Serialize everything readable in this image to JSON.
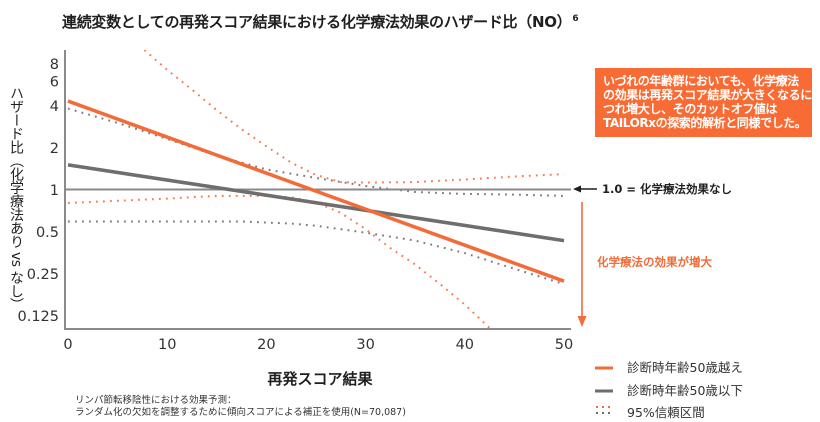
{
  "title": "連続変数としての再発スコア結果における化学療法効果のハザード比（NO）",
  "title_superscript": "6",
  "colors": {
    "older_group": "#F26B38",
    "younger_group": "#6E6E6E",
    "reference_line": "#8A8A8A",
    "callout_background": "#F86B35"
  },
  "callout": {
    "lines": [
      "いづれの年齢群においても、化学療法",
      "の効果は再発スコア結果が大きくなるに",
      "つれ増大し、そのカットオフ値は",
      "TAILORxの探索的解析と同様でした。"
    ]
  },
  "annotations": {
    "reference_label": "1.0 = 化学療法効果なし",
    "increase_label": "化学療法の効果が増大"
  },
  "footnote": {
    "line1": "リンパ節転移陰性における効果予測：",
    "line2": "ランダム化の欠如を調整するために傾向スコアによる補正を使用(N=70,087)"
  },
  "legend": {
    "position": "bottom-right",
    "items": [
      {
        "label": "診断時年齢50歳越え",
        "style": "solid",
        "color": "#F26B38"
      },
      {
        "label": "診断時年齢50歳以下",
        "style": "solid",
        "color": "#6E6E6E"
      },
      {
        "label": "95%信頼区間",
        "style": "dotted",
        "color": "#F26B38"
      }
    ]
  },
  "chart_data": {
    "type": "line",
    "title": "連続変数としての再発スコア結果における化学療法効果のハザード比（NO）",
    "xlabel": "再発スコア結果",
    "ylabel": "ハザード比（化学療法あり vs なし）",
    "xlim": [
      0,
      50
    ],
    "ylim": [
      0.1,
      10
    ],
    "yscale": "log",
    "grid": false,
    "xticks": [
      0,
      10,
      20,
      30,
      40,
      50
    ],
    "xtick_labels": [
      "0",
      "10",
      "20",
      "30",
      "40",
      "50"
    ],
    "yticks": [
      8,
      6,
      4,
      2,
      1,
      0.5,
      0.25,
      0.125
    ],
    "ytick_labels": [
      "8",
      "6",
      "4",
      "2",
      "1",
      "0.5",
      "0.25",
      "0.125"
    ],
    "reference_line": {
      "y": 1,
      "label": "1.0 = 化学療法効果なし"
    },
    "legend_position": "bottom-right",
    "series": [
      {
        "name": "診断時年齢50歳越え",
        "color": "#F26B38",
        "x": [
          0,
          50
        ],
        "y": [
          4.3,
          0.22
        ],
        "ci95": {
          "upper": {
            "x": [
              7.7,
              10,
              12.5,
              15,
              17.5,
              20,
              22.5,
              25,
              27.5,
              30,
              35,
              40,
              45,
              50
            ],
            "y": [
              10,
              7.2,
              5.2,
              3.7,
              2.7,
              2.04,
              1.56,
              1.27,
              1.13,
              1.12,
              1.13,
              1.18,
              1.24,
              1.29
            ]
          },
          "lower": {
            "x": [
              0,
              5,
              10,
              15,
              20,
              22.5,
              25,
              27.5,
              30,
              32.5,
              35,
              37.5,
              40,
              42.6
            ],
            "y": [
              0.8,
              0.83,
              0.86,
              0.9,
              0.9,
              0.88,
              0.81,
              0.68,
              0.52,
              0.38,
              0.29,
              0.21,
              0.15,
              0.1
            ]
          }
        }
      },
      {
        "name": "診断時年齢50歳以下",
        "color": "#6E6E6E",
        "x": [
          0,
          50
        ],
        "y": [
          1.5,
          0.43
        ],
        "ci95": {
          "upper": {
            "x": [
              0,
              5,
              10,
              15,
              20,
              25,
              30,
              35,
              40,
              45,
              50
            ],
            "y": [
              3.8,
              3.0,
              2.3,
              1.75,
              1.39,
              1.21,
              1.06,
              0.96,
              0.93,
              0.92,
              0.9
            ]
          },
          "lower": {
            "x": [
              0,
              10,
              17.5,
              22.5,
              25,
              30,
              35,
              40,
              45,
              50
            ],
            "y": [
              0.59,
              0.59,
              0.59,
              0.57,
              0.55,
              0.49,
              0.43,
              0.35,
              0.27,
              0.21
            ]
          }
        }
      }
    ]
  }
}
